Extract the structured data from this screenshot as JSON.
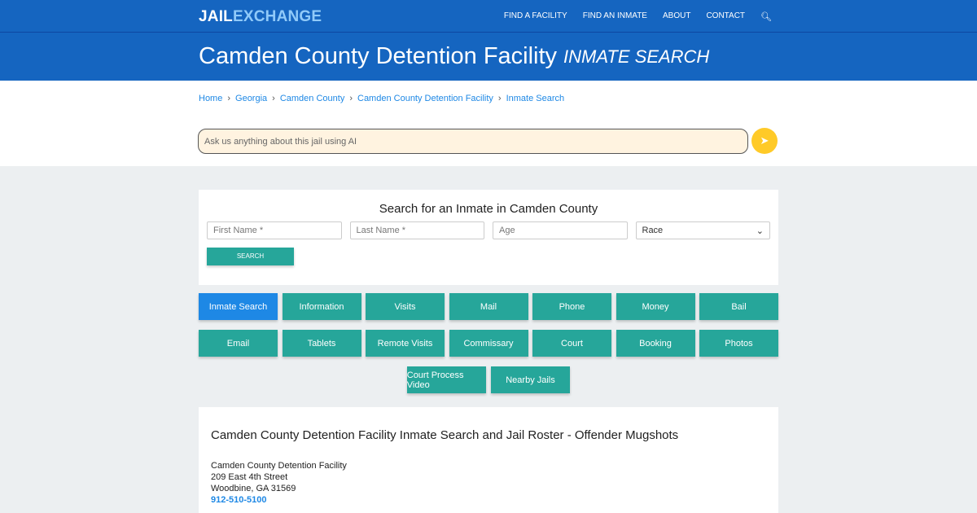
{
  "header": {
    "logo_a": "JAIL",
    "logo_b": "EXCHANGE",
    "nav": [
      "FIND A FACILITY",
      "FIND AN INMATE",
      "ABOUT",
      "CONTACT"
    ],
    "search_icon": "search-icon"
  },
  "title": {
    "main": "Camden County Detention Facility",
    "sub": "INMATE SEARCH"
  },
  "breadcrumb": [
    "Home",
    "Georgia",
    "Camden County",
    "Camden County Detention Facility",
    "Inmate Search"
  ],
  "ai": {
    "placeholder": "Ask us anything about this jail using AI",
    "send_icon": "paper-plane-icon"
  },
  "search": {
    "heading": "Search for an Inmate in Camden County",
    "first": "First Name *",
    "last": "Last Name *",
    "age": "Age",
    "race": "Race",
    "button": "SEARCH"
  },
  "buttons": [
    [
      "Inmate Search",
      "Information",
      "Visits",
      "Mail",
      "Phone",
      "Money",
      "Bail"
    ],
    [
      "Email",
      "Tablets",
      "Remote Visits",
      "Commissary",
      "Court",
      "Booking",
      "Photos"
    ],
    [
      "Court Process Video",
      "Nearby Jails"
    ]
  ],
  "info": {
    "heading": "Camden County Detention Facility Inmate Search and Jail Roster - Offender Mugshots",
    "name": "Camden County Detention Facility",
    "street": "209 East 4th Street",
    "city": "Woodbine, GA 31569",
    "phone": "912-510-5100"
  },
  "colors": {
    "brand": "#1565c0",
    "teal": "#26a69a",
    "active": "#1e88e5",
    "send": "#ffca28"
  }
}
